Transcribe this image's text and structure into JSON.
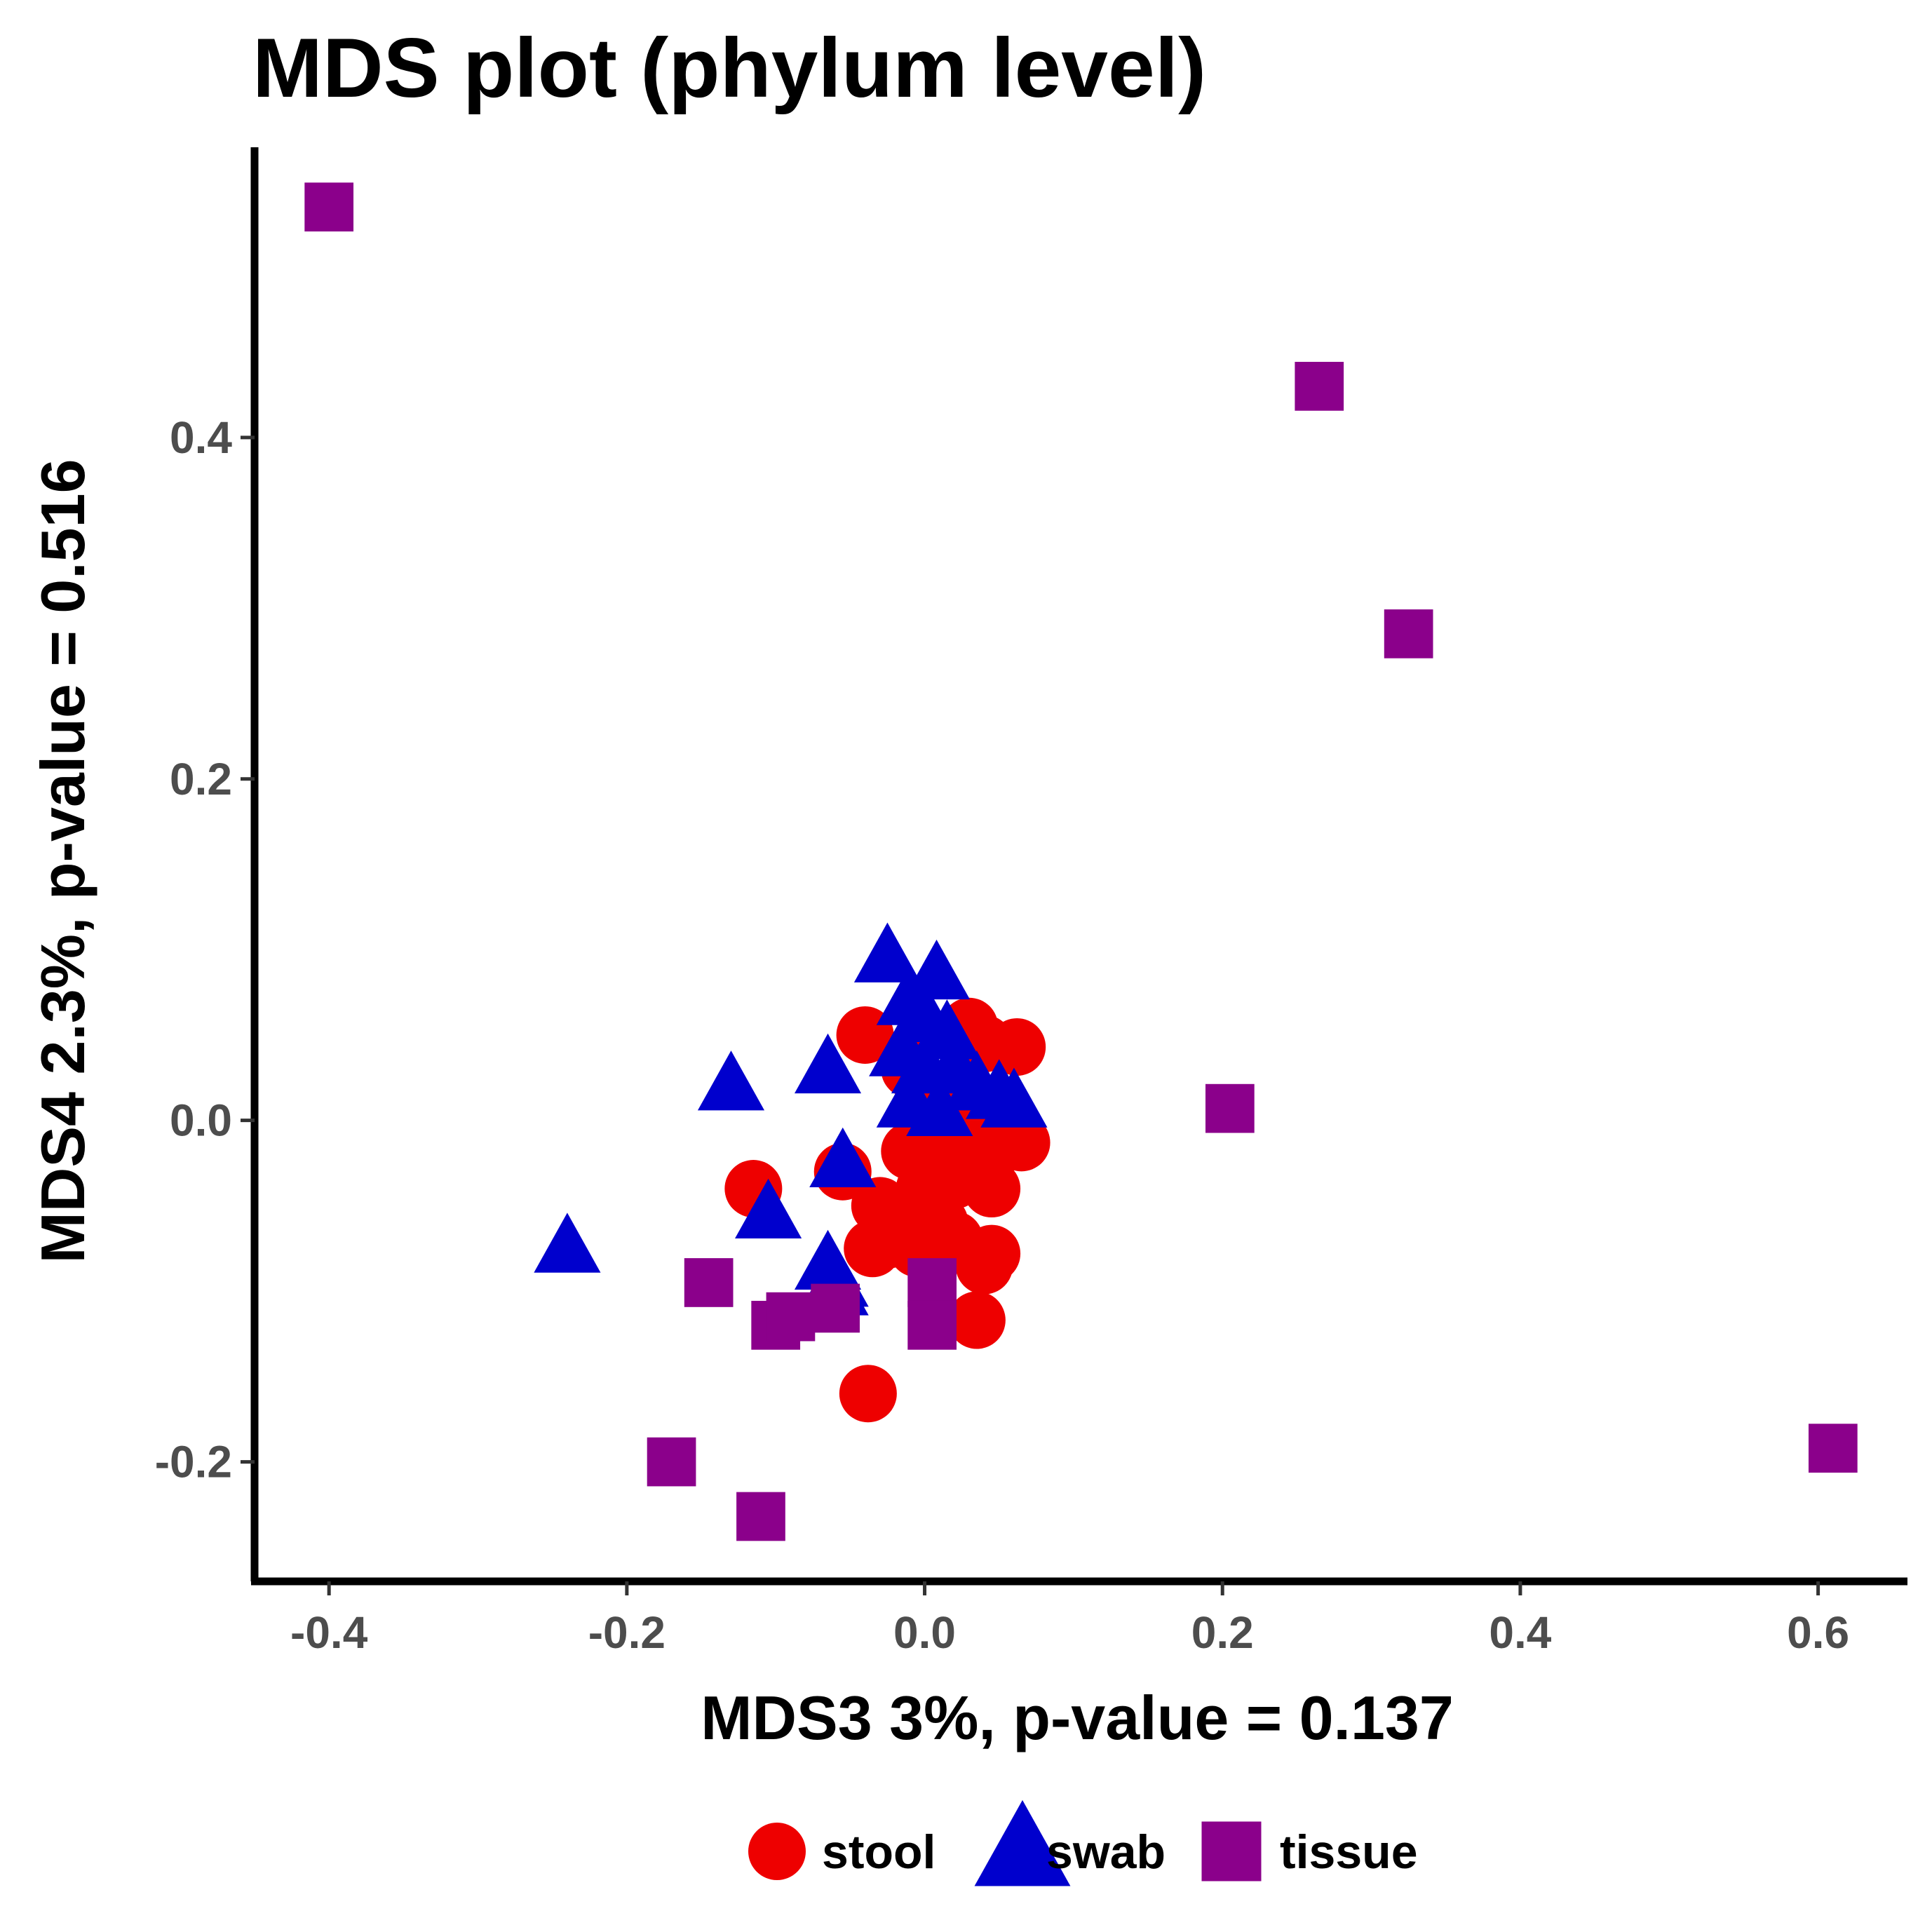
{
  "chart_data": {
    "type": "scatter",
    "title": "MDS plot (phylum level)",
    "xlabel": "MDS3 3%, p-value = 0.137",
    "ylabel": "MDS4 2.3%, p-value = 0.516",
    "xlim": [
      -0.45,
      0.66
    ],
    "ylim": [
      -0.27,
      0.57
    ],
    "xticks": [
      -0.4,
      -0.2,
      0.0,
      0.2,
      0.4,
      0.6
    ],
    "xtick_labels": [
      "-0.4",
      "-0.2",
      "0.0",
      "0.2",
      "0.4",
      "0.6"
    ],
    "yticks": [
      -0.2,
      0.0,
      0.2,
      0.4
    ],
    "ytick_labels": [
      "-0.2",
      "0.0",
      "0.2",
      "0.4"
    ],
    "grid": false,
    "legend_position": "bottom",
    "series": [
      {
        "name": "stool",
        "shape": "circle",
        "color": "#EE0000",
        "points": [
          [
            -0.04,
            0.05
          ],
          [
            0.03,
            0.055
          ],
          [
            0.04,
            0.045
          ],
          [
            0.062,
            0.043
          ],
          [
            -0.01,
            0.03
          ],
          [
            0.0,
            0.02
          ],
          [
            0.02,
            0.01
          ],
          [
            0.035,
            0.005
          ],
          [
            -0.01,
            -0.018
          ],
          [
            0.01,
            -0.02
          ],
          [
            0.03,
            -0.015
          ],
          [
            0.05,
            -0.015
          ],
          [
            0.065,
            -0.013
          ],
          [
            -0.115,
            -0.04
          ],
          [
            -0.055,
            -0.03
          ],
          [
            0.0,
            -0.04
          ],
          [
            0.02,
            -0.035
          ],
          [
            0.045,
            -0.04
          ],
          [
            -0.03,
            -0.05
          ],
          [
            -0.01,
            -0.055
          ],
          [
            0.01,
            -0.06
          ],
          [
            -0.025,
            -0.07
          ],
          [
            -0.005,
            -0.075
          ],
          [
            0.02,
            -0.07
          ],
          [
            -0.035,
            -0.075
          ],
          [
            0.045,
            -0.078
          ],
          [
            0.04,
            -0.085
          ],
          [
            0.035,
            -0.117
          ],
          [
            -0.038,
            -0.16
          ]
        ]
      },
      {
        "name": "swab",
        "shape": "triangle",
        "color": "#0000CD",
        "points": [
          [
            -0.025,
            0.095
          ],
          [
            0.008,
            0.085
          ],
          [
            -0.01,
            0.07
          ],
          [
            0.0,
            0.06
          ],
          [
            0.015,
            0.05
          ],
          [
            -0.015,
            0.04
          ],
          [
            0.0,
            0.03
          ],
          [
            0.02,
            0.03
          ],
          [
            -0.065,
            0.03
          ],
          [
            -0.13,
            0.02
          ],
          [
            0.035,
            0.02
          ],
          [
            0.05,
            0.015
          ],
          [
            0.06,
            0.01
          ],
          [
            -0.01,
            0.01
          ],
          [
            0.01,
            0.005
          ],
          [
            -0.055,
            -0.025
          ],
          [
            -0.105,
            -0.055
          ],
          [
            -0.24,
            -0.075
          ],
          [
            -0.065,
            -0.085
          ],
          [
            -0.06,
            -0.095
          ],
          [
            -0.06,
            -0.1
          ]
        ]
      },
      {
        "name": "tissue",
        "shape": "square",
        "color": "#8B008B",
        "points": [
          [
            -0.4,
            0.535
          ],
          [
            0.265,
            0.43
          ],
          [
            0.325,
            0.285
          ],
          [
            0.205,
            0.007
          ],
          [
            -0.145,
            -0.095
          ],
          [
            -0.1,
            -0.12
          ],
          [
            -0.09,
            -0.115
          ],
          [
            -0.06,
            -0.11
          ],
          [
            0.005,
            -0.095
          ],
          [
            0.005,
            -0.12
          ],
          [
            -0.17,
            -0.2
          ],
          [
            -0.11,
            -0.232
          ],
          [
            0.61,
            -0.192
          ]
        ]
      }
    ]
  }
}
